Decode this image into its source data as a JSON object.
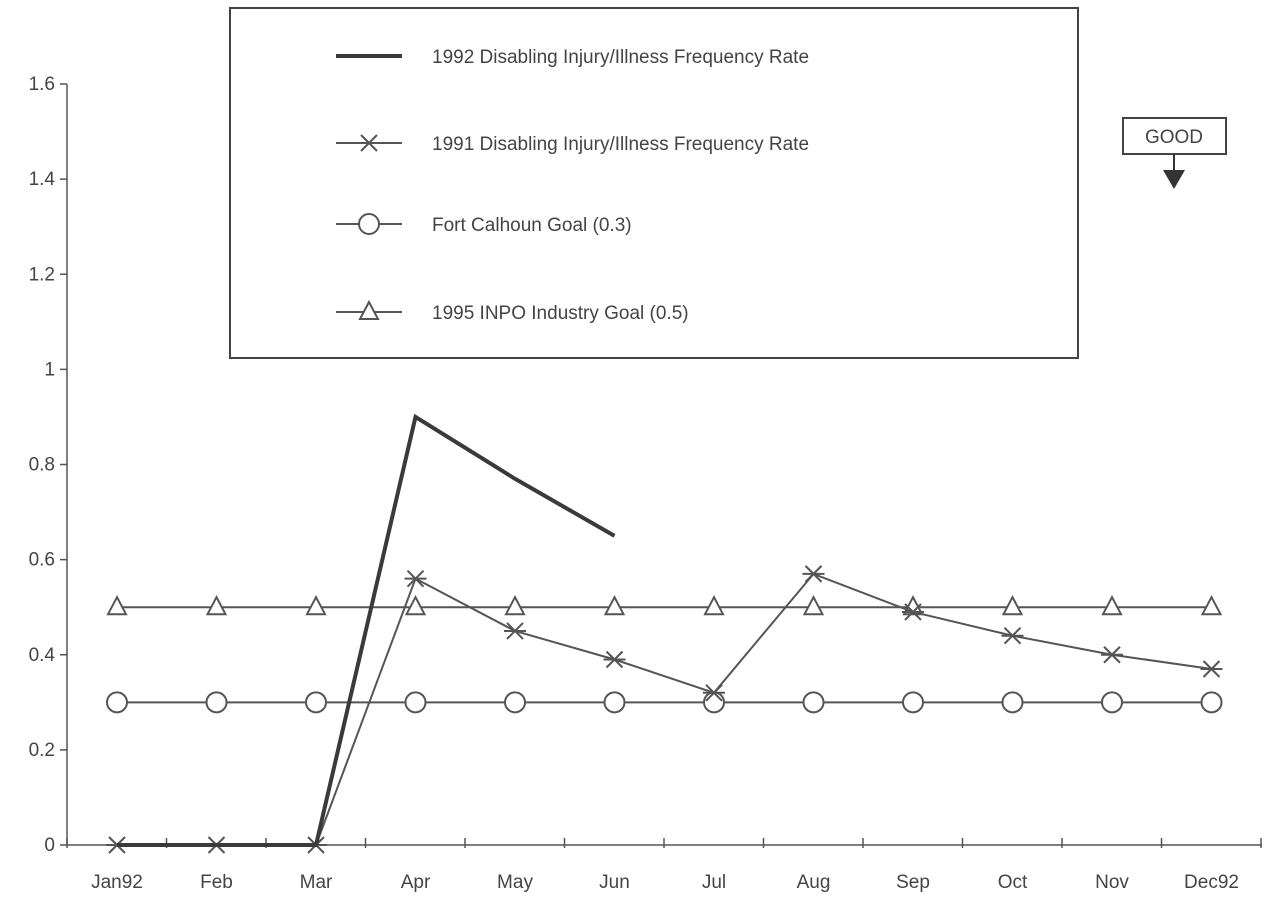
{
  "chart_data": {
    "type": "line",
    "title": "",
    "xlabel": "",
    "ylabel": "",
    "categories": [
      "Jan92",
      "Feb",
      "Mar",
      "Apr",
      "May",
      "Jun",
      "Jul",
      "Aug",
      "Sep",
      "Oct",
      "Nov",
      "Dec92"
    ],
    "yticks": [
      "0",
      "0.2",
      "0.4",
      "0.6",
      "0.8",
      "1",
      "1.2",
      "1.4",
      "1.6"
    ],
    "ylim": [
      0,
      1.6
    ],
    "grid": false,
    "legend_position": "top-center",
    "series": [
      {
        "name": "1992 Disabling Injury/Illness Frequency Rate",
        "marker": "none",
        "color": "#3a3a3a",
        "values": [
          0,
          0,
          0,
          0.9,
          0.77,
          0.65,
          null,
          null,
          null,
          null,
          null,
          null
        ]
      },
      {
        "name": "1991 Disabling Injury/Illness Frequency Rate",
        "marker": "x",
        "color": "#555555",
        "values": [
          0,
          0,
          0,
          0.56,
          0.45,
          0.39,
          0.32,
          0.57,
          0.49,
          0.44,
          0.4,
          0.37
        ]
      },
      {
        "name": "Fort Calhoun Goal (0.3)",
        "marker": "circle",
        "color": "#555555",
        "values": [
          0.3,
          0.3,
          0.3,
          0.3,
          0.3,
          0.3,
          0.3,
          0.3,
          0.3,
          0.3,
          0.3,
          0.3
        ]
      },
      {
        "name": "1995 INPO Industry Goal (0.5)",
        "marker": "triangle",
        "color": "#555555",
        "values": [
          0.5,
          0.5,
          0.5,
          0.5,
          0.5,
          0.5,
          0.5,
          0.5,
          0.5,
          0.5,
          0.5,
          0.5
        ]
      }
    ],
    "annotations": [
      {
        "text": "GOOD",
        "direction": "down"
      }
    ]
  }
}
